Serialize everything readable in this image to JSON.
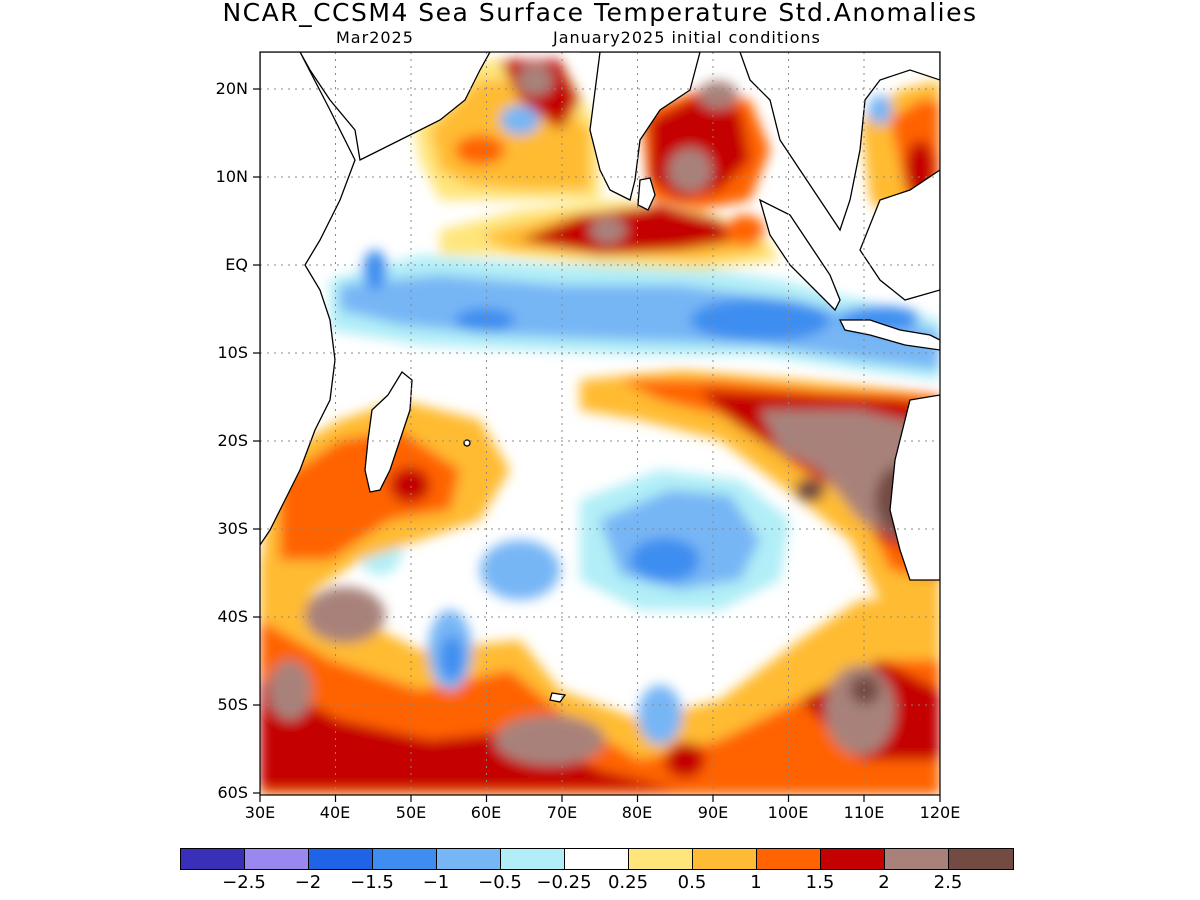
{
  "title": "NCAR_CCSM4 Sea Surface Temperature Std.Anomalies",
  "subtitle_left": "Mar2025",
  "subtitle_right": "January2025 initial conditions",
  "y_ticks": [
    "20N",
    "10N",
    "EQ",
    "10S",
    "20S",
    "30S",
    "40S",
    "50S",
    "60S"
  ],
  "x_ticks": [
    "30E",
    "40E",
    "50E",
    "60E",
    "70E",
    "80E",
    "90E",
    "100E",
    "110E",
    "120E"
  ],
  "colorbar": {
    "colors": [
      "#3a2fb8",
      "#9b87f0",
      "#1f64e6",
      "#3d8ef0",
      "#77b6f5",
      "#b1eef7",
      "#ffffff",
      "#ffe57a",
      "#ffbb33",
      "#ff6400",
      "#c40000",
      "#a8827a",
      "#744b42"
    ],
    "labels": [
      "-2.5",
      "-2",
      "-1.5",
      "-1",
      "-0.5",
      "-0.25",
      "0.25",
      "0.5",
      "1",
      "1.5",
      "2",
      "2.5"
    ]
  }
}
